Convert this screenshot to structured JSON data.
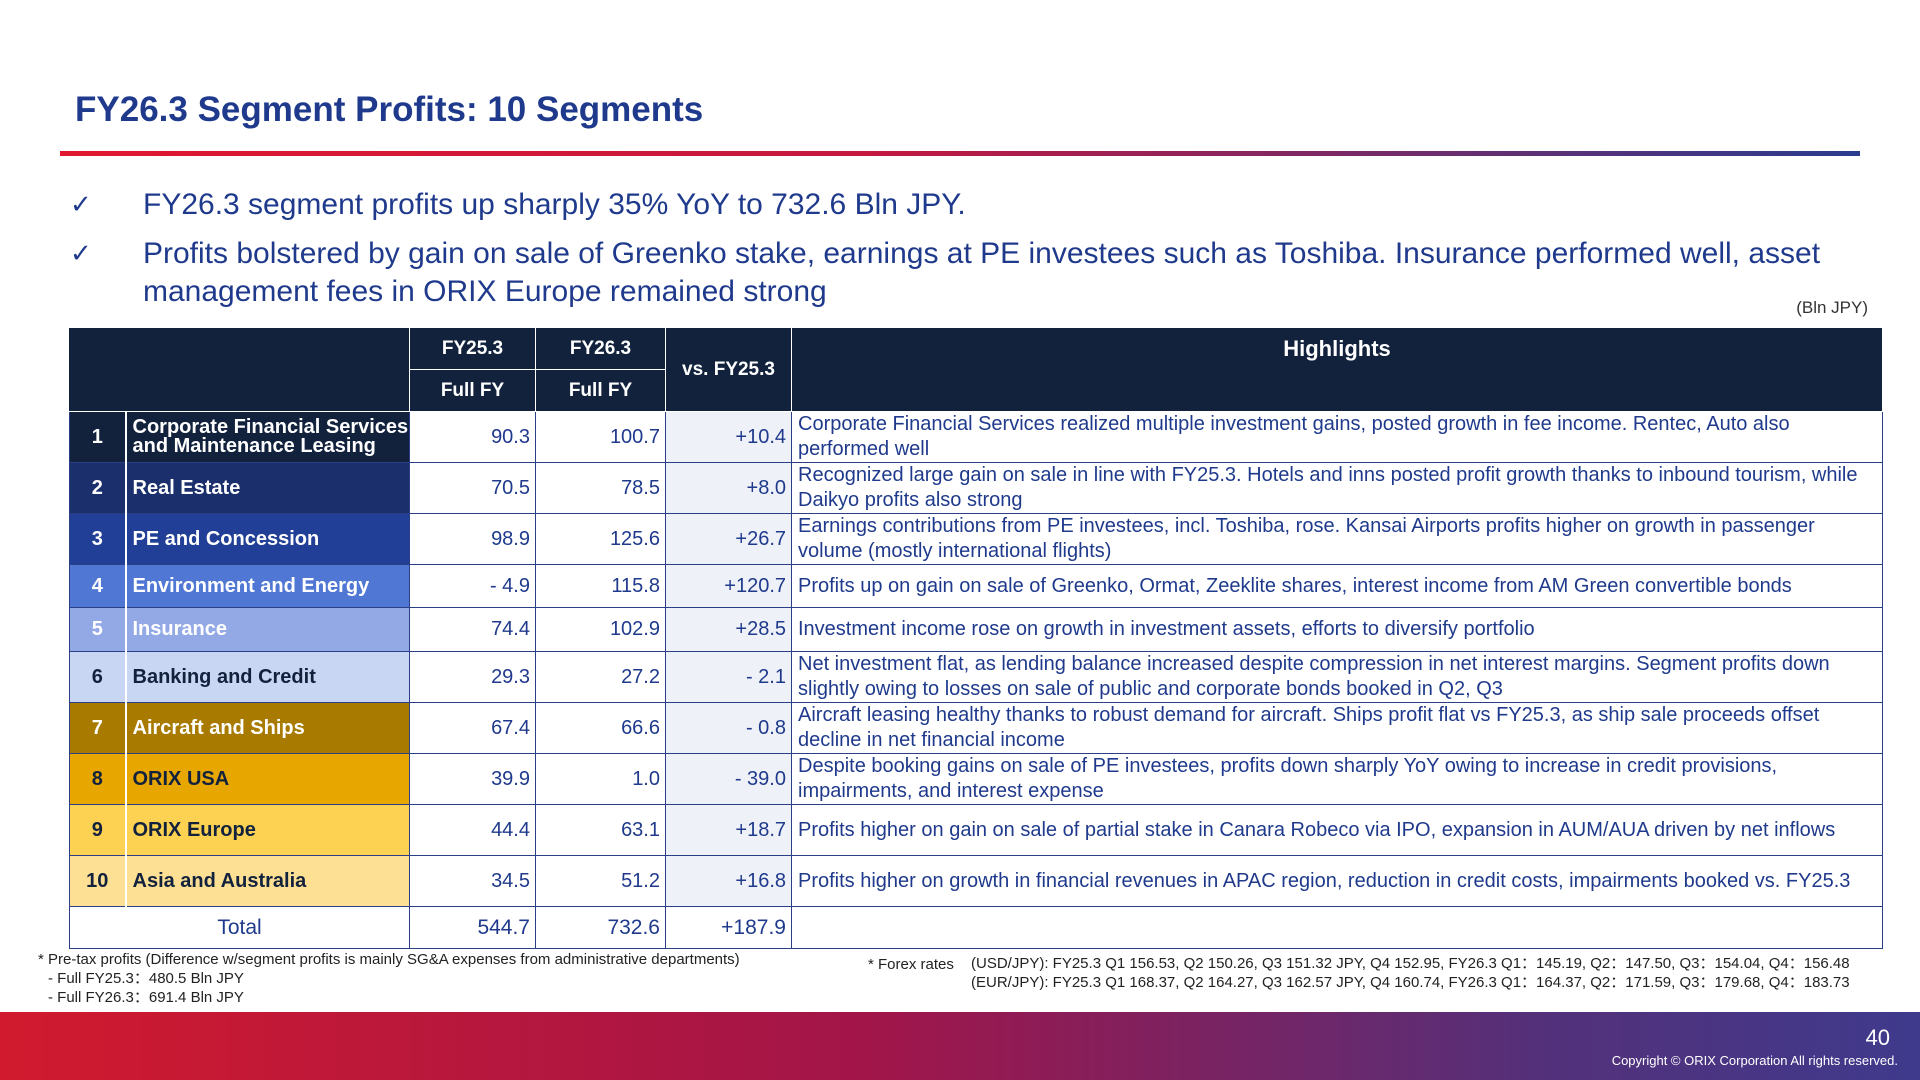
{
  "title": "FY26.3 Segment Profits: 10 Segments",
  "bullets": [
    "FY26.3 segment profits up sharply 35% YoY to 732.6 Bln JPY.",
    "Profits bolstered by gain on sale of Greenko stake, earnings at PE investees such as Toshiba. Insurance performed well, asset management fees in ORIX Europe remained strong"
  ],
  "check_glyph": "✓",
  "unit": "(Bln JPY)",
  "table": {
    "headers": {
      "fy25_top": "FY25.3",
      "fy25_bottom": "Full FY",
      "fy26_top": "FY26.3",
      "fy26_bottom": "Full FY",
      "vs": "vs. FY25.3",
      "highlights": "Highlights"
    },
    "rows": [
      {
        "no": "1",
        "segment": "Corporate Financial Services and Maintenance Leasing",
        "fy25": "90.3",
        "fy26": "100.7",
        "vs": "+10.4",
        "highlight": "Corporate Financial Services realized multiple investment gains, posted growth in fee income. Rentec, Auto also performed well",
        "bg": "#12223d",
        "fg": "#ffffff"
      },
      {
        "no": "2",
        "segment": "Real Estate",
        "fy25": "70.5",
        "fy26": "78.5",
        "vs": "+8.0",
        "highlight": "Recognized large gain on sale in line with FY25.3. Hotels and inns posted profit growth thanks to inbound tourism, while Daikyo profits also strong",
        "bg": "#1a2f6b",
        "fg": "#ffffff"
      },
      {
        "no": "3",
        "segment": "PE and Concession",
        "fy25": "98.9",
        "fy26": "125.6",
        "vs": "+26.7",
        "highlight": "Earnings contributions from PE investees, incl. Toshiba, rose. Kansai Airports profits higher on growth in passenger volume (mostly international flights)",
        "bg": "#213f96",
        "fg": "#ffffff"
      },
      {
        "no": "4",
        "segment": "Environment and Energy",
        "fy25": "- 4.9",
        "fy26": "115.8",
        "vs": "+120.7",
        "highlight": "Profits up on gain on sale of Greenko, Ormat, Zeeklite shares, interest income from AM Green convertible bonds",
        "bg": "#5077d4",
        "fg": "#ffffff"
      },
      {
        "no": "5",
        "segment": "Insurance",
        "fy25": "74.4",
        "fy26": "102.9",
        "vs": "+28.5",
        "highlight": "Investment income rose on growth in investment assets, efforts to diversify portfolio",
        "bg": "#93a9e6",
        "fg": "#ffffff"
      },
      {
        "no": "6",
        "segment": "Banking and Credit",
        "fy25": "29.3",
        "fy26": "27.2",
        "vs": "- 2.1",
        "highlight": "Net investment flat, as lending balance increased despite compression in net interest margins. Segment profits down slightly owing to losses on sale of public and corporate bonds booked in Q2, Q3",
        "bg": "#c9d6f3",
        "fg": "#12223d"
      },
      {
        "no": "7",
        "segment": "Aircraft and Ships",
        "fy25": "67.4",
        "fy26": "66.6",
        "vs": "- 0.8",
        "highlight": "Aircraft leasing healthy thanks to robust demand for aircraft. Ships profit flat vs FY25.3, as ship sale proceeds offset decline in net financial income",
        "bg": "#a87b00",
        "fg": "#ffffff"
      },
      {
        "no": "8",
        "segment": "ORIX USA",
        "fy25": "39.9",
        "fy26": "1.0",
        "vs": "- 39.0",
        "highlight": "Despite booking gains on sale of PE investees, profits down sharply YoY owing to increase in credit provisions, impairments, and interest expense",
        "bg": "#e8a600",
        "fg": "#12223d"
      },
      {
        "no": "9",
        "segment": "ORIX Europe",
        "fy25": "44.4",
        "fy26": "63.1",
        "vs": "+18.7",
        "highlight": "Profits higher on gain on sale of partial stake in Canara Robeco via IPO, expansion in AUM/AUA driven by net inflows",
        "bg": "#fdd152",
        "fg": "#12223d"
      },
      {
        "no": "10",
        "segment": "Asia and Australia",
        "fy25": "34.5",
        "fy26": "51.2",
        "vs": "+16.8",
        "highlight": "Profits higher on growth in financial revenues in APAC region, reduction in credit costs, impairments booked vs. FY25.3",
        "bg": "#fde094",
        "fg": "#12223d"
      }
    ],
    "total": {
      "label": "Total",
      "fy25": "544.7",
      "fy26": "732.6",
      "vs": "+187.9"
    }
  },
  "footnotes": {
    "pretax": "* Pre-tax profits (Difference w/segment profits is mainly SG&A expenses from administrative departments)",
    "pretax_fy25": "- Full FY25.3：480.5 Bln JPY",
    "pretax_fy26": "- Full FY26.3：691.4 Bln JPY",
    "forex_label": "* Forex rates",
    "forex_usd": "(USD/JPY): FY25.3 Q1 156.53, Q2 150.26, Q3 151.32 JPY, Q4 152.95, FY26.3 Q1：145.19, Q2：147.50, Q3：154.04, Q4：156.48",
    "forex_eur": "(EUR/JPY): FY25.3 Q1 168.37, Q2 164.27, Q3 162.57 JPY, Q4 160.74, FY26.3 Q1：164.37, Q2：171.59, Q3：179.68, Q4：183.73"
  },
  "footer": {
    "page_number": "40",
    "copyright": "Copyright © ORIX Corporation All rights reserved."
  },
  "colors": {
    "title": "#1f3a8c",
    "header_bg": "#12223d",
    "rule_start": "#e0182f",
    "rule_end": "#2a3c8f"
  }
}
